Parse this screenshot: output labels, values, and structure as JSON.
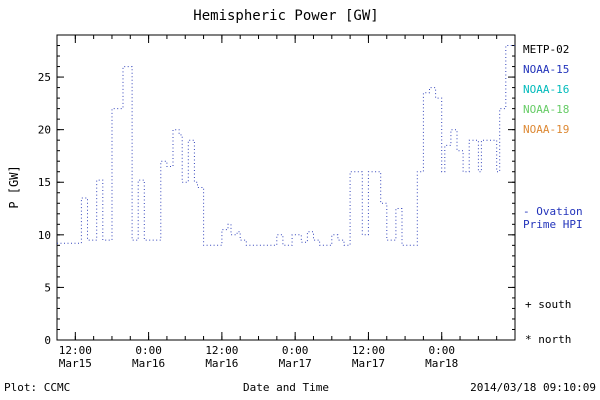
{
  "title": "Hemispheric Power [GW]",
  "ylabel": "P [GW]",
  "footer": {
    "left": "Plot: CCMC",
    "center": "Date and Time",
    "right": "2014/03/18 09:10:09"
  },
  "legend": {
    "satellites": [
      {
        "label": "METP-02",
        "color": "#000000"
      },
      {
        "label": "NOAA-15",
        "color": "#2233bb"
      },
      {
        "label": "NOAA-16",
        "color": "#00bbbb"
      },
      {
        "label": "NOAA-18",
        "color": "#66cc66"
      },
      {
        "label": "NOAA-19",
        "color": "#dd8833"
      }
    ],
    "note": {
      "line1": "- Ovation",
      "line2": "Prime HPI",
      "color": "#2233bb"
    },
    "markers": [
      {
        "symbol": "+",
        "label": "south"
      },
      {
        "symbol": "*",
        "label": "north"
      }
    ]
  },
  "chart_data": {
    "type": "line",
    "step": true,
    "line_style": "dotted",
    "line_color": "#3344bb",
    "title": "Hemispheric Power [GW]",
    "xlabel": "Date and Time",
    "ylabel": "P [GW]",
    "x_unit": "hours since 2014-03-15 00:00",
    "xlim": [
      9,
      84
    ],
    "ylim": [
      0,
      29
    ],
    "y_major_ticks": [
      0,
      5,
      10,
      15,
      20,
      25
    ],
    "y_minor_step": 1,
    "x_minor_step": 3,
    "x_ticks": [
      {
        "t": 12,
        "time": "12:00",
        "date": "Mar15"
      },
      {
        "t": 24,
        "time": "0:00",
        "date": "Mar16"
      },
      {
        "t": 36,
        "time": "12:00",
        "date": "Mar16"
      },
      {
        "t": 48,
        "time": "0:00",
        "date": "Mar17"
      },
      {
        "t": 60,
        "time": "12:00",
        "date": "Mar17"
      },
      {
        "t": 72,
        "time": "0:00",
        "date": "Mar18"
      }
    ],
    "points": [
      [
        9,
        9.2
      ],
      [
        13,
        13.5
      ],
      [
        14,
        9.5
      ],
      [
        15.5,
        15.2
      ],
      [
        16.5,
        9.5
      ],
      [
        18,
        22
      ],
      [
        19.8,
        26
      ],
      [
        21.3,
        9.5
      ],
      [
        22.3,
        15.2
      ],
      [
        23.3,
        9.5
      ],
      [
        26,
        17
      ],
      [
        27,
        16.5
      ],
      [
        28,
        20
      ],
      [
        29,
        19.5
      ],
      [
        29.5,
        15
      ],
      [
        30.5,
        19
      ],
      [
        31.5,
        15
      ],
      [
        32,
        14.5
      ],
      [
        33,
        9
      ],
      [
        36,
        10.5
      ],
      [
        37,
        11
      ],
      [
        37.5,
        10
      ],
      [
        38.5,
        10.3
      ],
      [
        39,
        9.5
      ],
      [
        40,
        9
      ],
      [
        45,
        10
      ],
      [
        46,
        9
      ],
      [
        47.5,
        10
      ],
      [
        49,
        9.3
      ],
      [
        50,
        10.3
      ],
      [
        51,
        9.5
      ],
      [
        52,
        9
      ],
      [
        54,
        10
      ],
      [
        55,
        9.5
      ],
      [
        56,
        9
      ],
      [
        57,
        16
      ],
      [
        59,
        10
      ],
      [
        60,
        16
      ],
      [
        62,
        13
      ],
      [
        63,
        9.5
      ],
      [
        64.5,
        12.5
      ],
      [
        65.5,
        9
      ],
      [
        68,
        16
      ],
      [
        69,
        23.5
      ],
      [
        70,
        24
      ],
      [
        71,
        23
      ],
      [
        72,
        16
      ],
      [
        72.5,
        18.5
      ],
      [
        73.5,
        20
      ],
      [
        74.5,
        18
      ],
      [
        75.5,
        16
      ],
      [
        76.5,
        19
      ],
      [
        78,
        16
      ],
      [
        78.5,
        19
      ],
      [
        81,
        16
      ],
      [
        81.5,
        22
      ],
      [
        82.5,
        28
      ],
      [
        84,
        28
      ]
    ]
  }
}
